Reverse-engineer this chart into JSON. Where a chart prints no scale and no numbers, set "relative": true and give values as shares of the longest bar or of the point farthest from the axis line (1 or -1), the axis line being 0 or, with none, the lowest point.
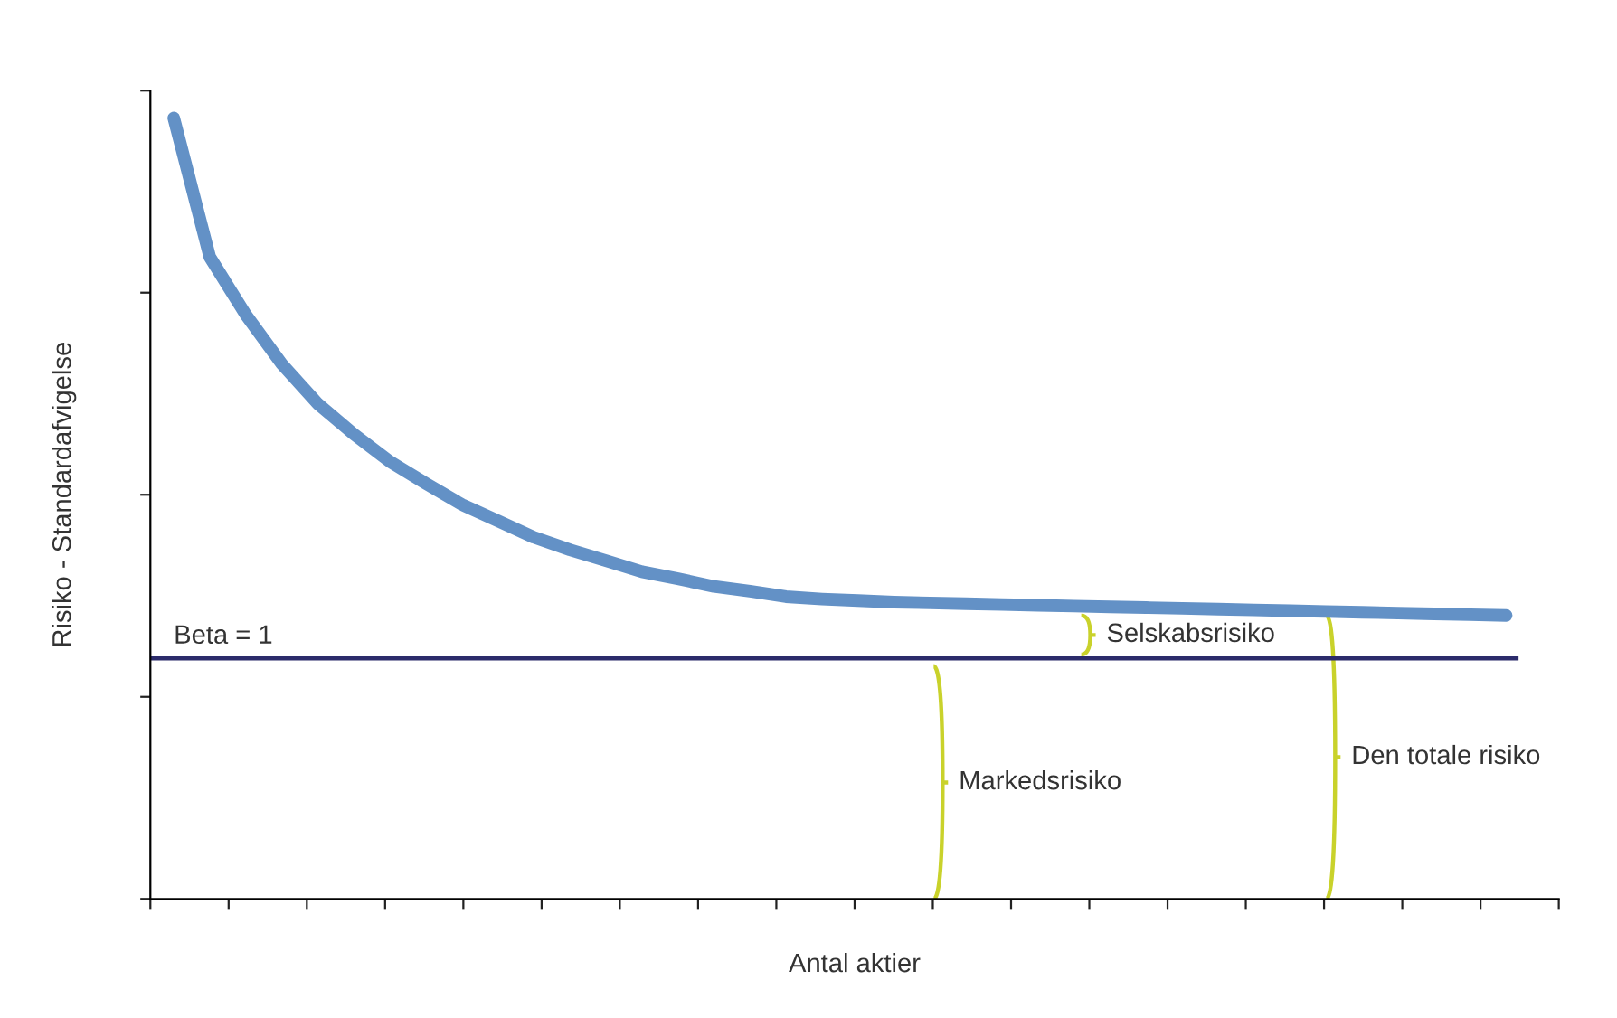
{
  "chart_data": {
    "type": "line",
    "relative": true,
    "xlabel": "Antal aktier",
    "ylabel": "Risiko - Standardafvigelse",
    "categories": [
      null,
      null,
      null,
      null,
      null,
      null,
      null,
      null,
      null,
      null,
      null,
      null,
      null,
      null,
      null,
      null,
      null,
      null,
      null,
      null,
      null,
      null,
      null,
      null,
      null,
      null,
      null,
      null,
      null,
      null,
      null,
      null,
      null,
      null,
      null,
      null,
      null,
      null
    ],
    "series": [
      {
        "color": "#6391c6",
        "values": [
          1.0,
          0.822,
          0.748,
          0.685,
          0.634,
          0.595,
          0.56,
          0.532,
          0.505,
          0.484,
          0.463,
          0.447,
          0.433,
          0.419,
          0.41,
          0.4,
          0.394,
          0.387,
          0.384,
          0.382,
          0.38,
          0.379,
          0.378,
          0.377,
          0.376,
          0.375,
          0.374,
          0.373,
          0.372,
          0.371,
          0.37,
          0.369,
          0.368,
          0.367,
          0.366,
          0.365,
          0.364,
          0.363
        ]
      }
    ],
    "ref_lines": [
      {
        "axis": "y",
        "value": 0.308,
        "color": "#2b2b6b"
      }
    ],
    "annotations": [
      "Beta = 1",
      "Selskabsrisiko",
      "Markedsrisiko",
      "Den totale risiko"
    ],
    "grid": false
  }
}
